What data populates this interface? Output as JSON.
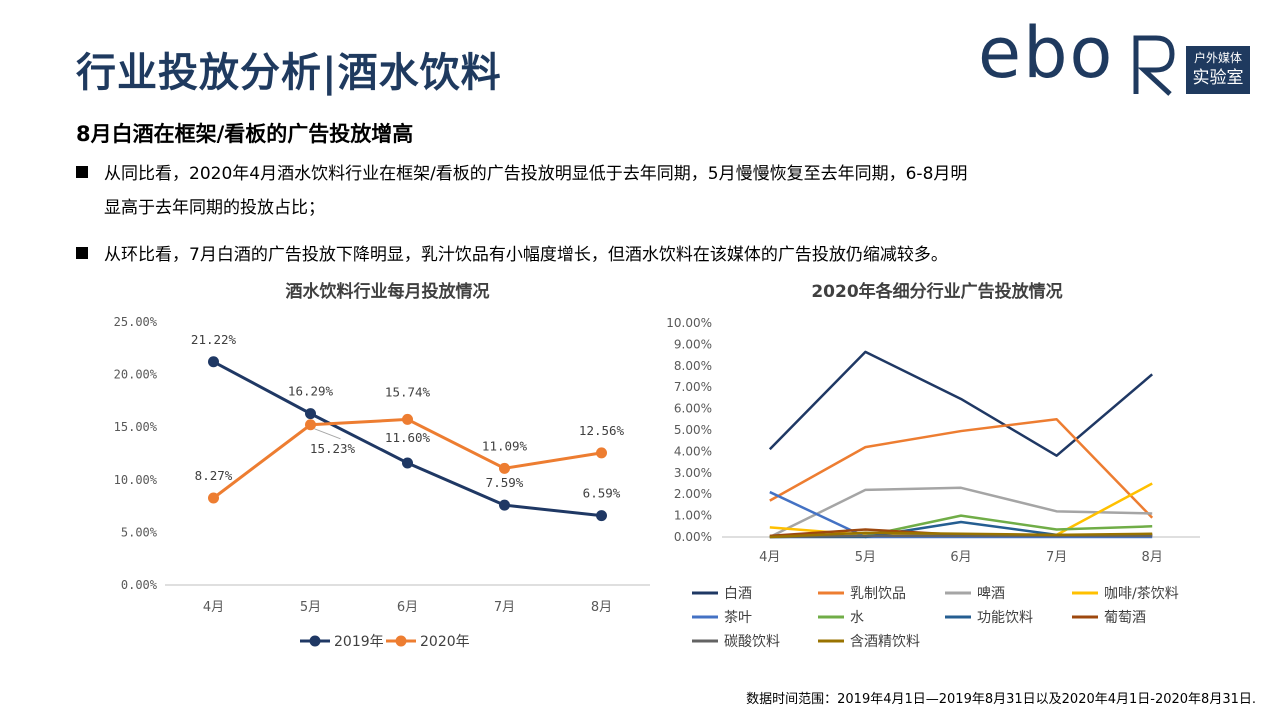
{
  "header": {
    "title": "行业投放分析|酒水饮料",
    "logo_text": "ebo",
    "logo_box_line1": "户外媒体",
    "logo_box_line2": "实验室"
  },
  "subtitle": "8月白酒在框架/看板的广告投放增高",
  "bullets": [
    {
      "line1": "从同比看，2020年4月酒水饮料行业在框架/看板的广告投放明显低于去年同期，5月慢慢恢复至去年同期，6-8月明",
      "line2": "显高于去年同期的投放占比；"
    },
    {
      "line1": "从环比看，7月白酒的广告投放下降明显，乳汁饮品有小幅度增长，但酒水饮料在该媒体的广告投放仍缩减较多。"
    }
  ],
  "footnote": "数据时间范围：2019年4月1日—2019年8月31日以及2020年4月1日-2020年8月31日.",
  "chart_data": [
    {
      "type": "line",
      "title": "酒水饮料行业每月投放情况",
      "categories": [
        "4月",
        "5月",
        "6月",
        "7月",
        "8月"
      ],
      "y_ticks": [
        "0.00%",
        "5.00%",
        "10.00%",
        "15.00%",
        "20.00%",
        "25.00%"
      ],
      "ylim": [
        0,
        25
      ],
      "series": [
        {
          "name": "2019年",
          "color": "#1f3864",
          "values": [
            21.22,
            16.29,
            11.6,
            7.59,
            6.59
          ],
          "labels": [
            "21.22%",
            "16.29%",
            "11.60%",
            "7.59%",
            "6.59%"
          ]
        },
        {
          "name": "2020年",
          "color": "#ed7d31",
          "values": [
            8.27,
            15.23,
            15.74,
            11.09,
            12.56
          ],
          "labels": [
            "8.27%",
            "15.23%",
            "15.74%",
            "11.09%",
            "12.56%"
          ]
        }
      ]
    },
    {
      "type": "line",
      "title": "2020年各细分行业广告投放情况",
      "categories": [
        "4月",
        "5月",
        "6月",
        "7月",
        "8月"
      ],
      "y_ticks": [
        "0.00%",
        "1.00%",
        "2.00%",
        "3.00%",
        "4.00%",
        "5.00%",
        "6.00%",
        "7.00%",
        "8.00%",
        "9.00%",
        "10.00%"
      ],
      "ylim": [
        0,
        10
      ],
      "series": [
        {
          "name": "白酒",
          "color": "#1f3864",
          "values": [
            4.1,
            8.65,
            6.45,
            3.8,
            7.6
          ]
        },
        {
          "name": "乳制饮品",
          "color": "#ed7d31",
          "values": [
            1.7,
            4.2,
            4.95,
            5.5,
            0.9
          ]
        },
        {
          "name": "啤酒",
          "color": "#a5a5a5",
          "values": [
            0.0,
            2.2,
            2.3,
            1.2,
            1.1
          ]
        },
        {
          "name": "咖啡/茶饮料",
          "color": "#ffc000",
          "values": [
            0.45,
            0.1,
            0.1,
            0.1,
            2.5
          ]
        },
        {
          "name": "茶叶",
          "color": "#4472c4",
          "values": [
            2.1,
            0.0,
            0.0,
            0.0,
            0.0
          ]
        },
        {
          "name": "水",
          "color": "#70ad47",
          "values": [
            0.0,
            0.05,
            1.0,
            0.35,
            0.5
          ]
        },
        {
          "name": "功能饮料",
          "color": "#255e91",
          "values": [
            0.0,
            0.0,
            0.7,
            0.1,
            0.1
          ]
        },
        {
          "name": "葡萄酒",
          "color": "#9e480e",
          "values": [
            0.05,
            0.35,
            0.1,
            0.05,
            0.1
          ]
        },
        {
          "name": "碳酸饮料",
          "color": "#636363",
          "values": [
            0.0,
            0.05,
            0.05,
            0.05,
            0.05
          ]
        },
        {
          "name": "含酒精饮料",
          "color": "#997300",
          "values": [
            0.0,
            0.2,
            0.15,
            0.1,
            0.15
          ]
        }
      ]
    }
  ]
}
